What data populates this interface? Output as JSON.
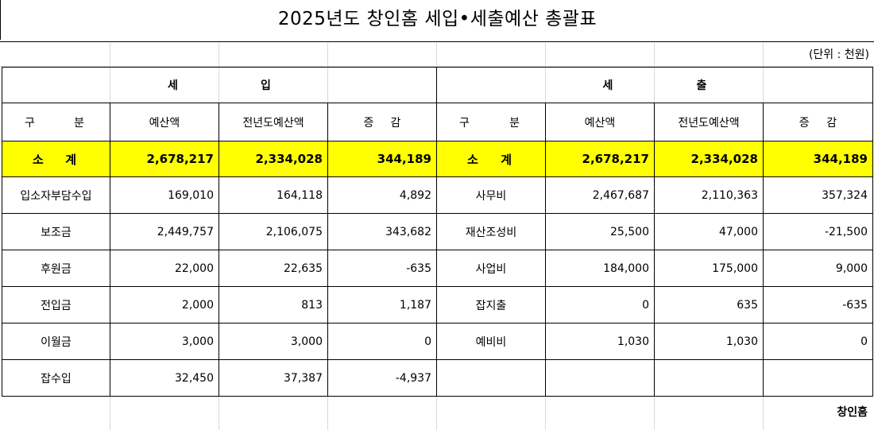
{
  "title": "2025년도 창인홈 세입•세출예산 총괄표",
  "unit": "(단위 : 천원)",
  "revenue_header": [
    "세",
    "입"
  ],
  "expense_header": [
    "세",
    "출"
  ],
  "columns": {
    "category": [
      "구",
      "분"
    ],
    "budget": "예산액",
    "prev_budget": "전년도예산액",
    "change": [
      "증",
      "감"
    ]
  },
  "total": {
    "revenue_label": [
      "소",
      "계"
    ],
    "revenue_budget": "2,678,217",
    "revenue_prev": "2,334,028",
    "revenue_change": "344,189",
    "expense_label": [
      "소",
      "계"
    ],
    "expense_budget": "2,678,217",
    "expense_prev": "2,334,028",
    "expense_change": "344,189"
  },
  "rows": [
    {
      "rev_name": "입소자부담수입",
      "rev_budget": "169,010",
      "rev_prev": "164,118",
      "rev_change": "4,892",
      "exp_name": "사무비",
      "exp_budget": "2,467,687",
      "exp_prev": "2,110,363",
      "exp_change": "357,324"
    },
    {
      "rev_name": "보조금",
      "rev_budget": "2,449,757",
      "rev_prev": "2,106,075",
      "rev_change": "343,682",
      "exp_name": "재산조성비",
      "exp_budget": "25,500",
      "exp_prev": "47,000",
      "exp_change": "-21,500"
    },
    {
      "rev_name": "후원금",
      "rev_budget": "22,000",
      "rev_prev": "22,635",
      "rev_change": "-635",
      "exp_name": "사업비",
      "exp_budget": "184,000",
      "exp_prev": "175,000",
      "exp_change": "9,000"
    },
    {
      "rev_name": "전입금",
      "rev_budget": "2,000",
      "rev_prev": "813",
      "rev_change": "1,187",
      "exp_name": "잡지출",
      "exp_budget": "0",
      "exp_prev": "635",
      "exp_change": "-635"
    },
    {
      "rev_name": "이월금",
      "rev_budget": "3,000",
      "rev_prev": "3,000",
      "rev_change": "0",
      "exp_name": "예비비",
      "exp_budget": "1,030",
      "exp_prev": "1,030",
      "exp_change": "0"
    },
    {
      "rev_name": "잡수입",
      "rev_budget": "32,450",
      "rev_prev": "37,387",
      "rev_change": "-4,937",
      "exp_name": "",
      "exp_budget": "",
      "exp_prev": "",
      "exp_change": ""
    }
  ],
  "footer": "창인홈",
  "colors": {
    "highlight": "#ffff00",
    "border": "#000000",
    "grid": "#d9d9d9"
  }
}
